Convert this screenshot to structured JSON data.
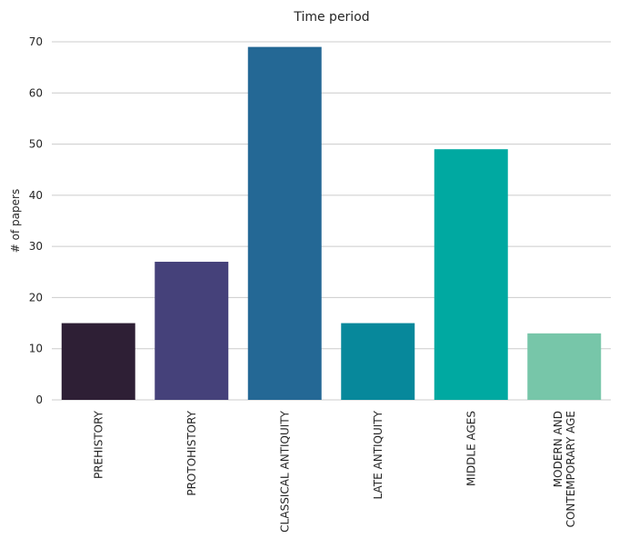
{
  "chart_data": {
    "type": "bar",
    "title": "Time period",
    "xlabel": "",
    "ylabel": "# of papers",
    "categories": [
      [
        "PREHISTORY"
      ],
      [
        "PROTOHISTORY"
      ],
      [
        "CLASSICAL ANTIQUITY"
      ],
      [
        "LATE ANTIQUITY"
      ],
      [
        "MIDDLE AGES"
      ],
      [
        "MODERN AND",
        "CONTEMPORARY AGE"
      ]
    ],
    "values": [
      15,
      27,
      69,
      15,
      49,
      13
    ],
    "colors": [
      "#2e1f35",
      "#45417a",
      "#246895",
      "#07889b",
      "#00a9a1",
      "#77c6a9"
    ],
    "ylim": [
      0,
      70
    ],
    "yticks": [
      0,
      10,
      20,
      30,
      40,
      50,
      60,
      70
    ],
    "grid": true,
    "grid_axis": "y",
    "legend": "none"
  }
}
